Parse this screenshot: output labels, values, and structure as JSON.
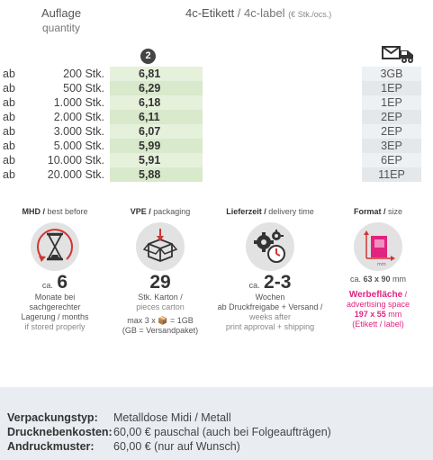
{
  "header": {
    "qty_label": "Auflage",
    "qty_sub": "quantity",
    "title_de": "4c-Etikett",
    "title_sep": " / ",
    "title_en": "4c-label",
    "title_unit": "(€ Stk./ocs.)",
    "badge": "2",
    "truck_icon": "delivery-truck-icon"
  },
  "prices": [
    {
      "ab": "ab",
      "qty": "200 Stk.",
      "price": "6,81",
      "ship": "3GB"
    },
    {
      "ab": "ab",
      "qty": "500 Stk.",
      "price": "6,29",
      "ship": "1EP"
    },
    {
      "ab": "ab",
      "qty": "1.000 Stk.",
      "price": "6,18",
      "ship": "1EP"
    },
    {
      "ab": "ab",
      "qty": "2.000 Stk.",
      "price": "6,11",
      "ship": "2EP"
    },
    {
      "ab": "ab",
      "qty": "3.000 Stk.",
      "price": "6,07",
      "ship": "2EP"
    },
    {
      "ab": "ab",
      "qty": "5.000 Stk.",
      "price": "5,99",
      "ship": "3EP"
    },
    {
      "ab": "ab",
      "qty": "10.000 Stk.",
      "price": "5,91",
      "ship": "6EP"
    },
    {
      "ab": "ab",
      "qty": "20.000 Stk.",
      "price": "5,88",
      "ship": "11EP"
    }
  ],
  "mhd": {
    "title_de": "MHD / ",
    "title_en": "best before",
    "icon": "hourglass-icon",
    "ca": "ca.",
    "value": "6",
    "line1": "Monate bei",
    "line2": "sachgerechter",
    "line3": "Lagerung / months",
    "line4": "if stored properly"
  },
  "vpe": {
    "title_de": "VPE / ",
    "title_en": "packaging",
    "icon": "box-icon",
    "value": "29",
    "line1": "Stk. Karton /",
    "line2": "pieces carton",
    "line3": "max 3 x 📦 = 1GB",
    "line4": "(GB = Versandpaket)"
  },
  "lieferzeit": {
    "title_de": "Lieferzeit / ",
    "title_en": "delivery time",
    "icon": "gears-clock-icon",
    "ca": "ca.",
    "value": "2-3",
    "line1": "Wochen",
    "line2": "ab Druckfreigabe + Versand /",
    "line3": "weeks after",
    "line4": "print approval + shipping"
  },
  "format": {
    "title_de": "Format / ",
    "title_en": "size",
    "icon": "label-format-icon",
    "mm_label": "mm",
    "size_prefix": "ca. ",
    "size_value": "63 x 90",
    "size_unit": " mm",
    "adv_de": "Werbefläche",
    "adv_sep": " /",
    "adv_en": "advertising space",
    "adv_size": "197 x 55",
    "adv_unit": " mm",
    "adv_note": "(Etikett / label)"
  },
  "spec": {
    "typ_label": "Verpackungstyp:",
    "typ_value": "Metalldose Midi / Metall",
    "neben_label": "Drucknebenkosten:",
    "neben_value": "60,00 € pauschal (auch bei Folgeaufträgen)",
    "muster_label": "Andruckmuster:",
    "muster_value": "60,00 € (nur auf Wunsch)"
  },
  "colors": {
    "accent": "#e0247f",
    "price_bg": "#e6f1dc",
    "ship_bg": "#eef1f3",
    "spec_bg": "#e9edf2"
  }
}
